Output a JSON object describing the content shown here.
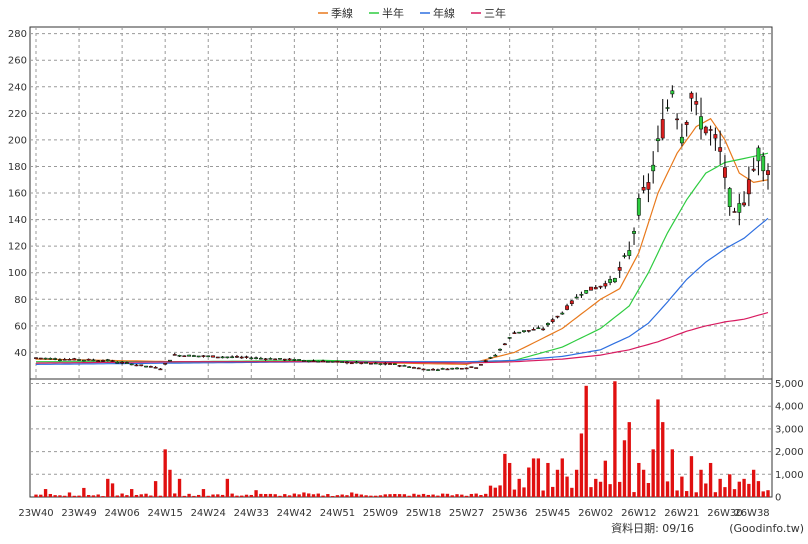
{
  "chart_data": {
    "type": "candlestick",
    "title": "",
    "legend": {
      "placement": "top-center",
      "items": [
        {
          "label": "季線",
          "color": "#e8791c"
        },
        {
          "label": "半年",
          "color": "#2ecc40"
        },
        {
          "label": "年線",
          "color": "#2e6fe0"
        },
        {
          "label": "三年",
          "color": "#d81b60"
        }
      ]
    },
    "price_axis": {
      "ylim": [
        20,
        285
      ],
      "ticks": [
        40,
        60,
        80,
        100,
        120,
        140,
        160,
        180,
        200,
        220,
        240,
        260,
        280
      ],
      "side": "left",
      "grid": true
    },
    "volume_axis": {
      "ylim": [
        0,
        5200
      ],
      "ticks": [
        "0",
        "1,000",
        "2,000",
        "3,000",
        "4,000",
        "5,000"
      ],
      "tick_values": [
        0,
        1000,
        2000,
        3000,
        4000,
        5000
      ],
      "side": "right"
    },
    "x_tick_labels": [
      "23W40",
      "23W49",
      "24W06",
      "24W15",
      "24W24",
      "24W33",
      "24W42",
      "24W51",
      "25W09",
      "25W18",
      "25W27",
      "25W36",
      "25W45",
      "26W02",
      "26W12",
      "26W21",
      "26W30",
      "26W38"
    ],
    "x_tick_index": [
      0,
      9,
      18,
      27,
      36,
      45,
      54,
      63,
      72,
      81,
      90,
      99,
      108,
      117,
      126,
      135,
      144,
      152
    ],
    "candle_anchors": [
      [
        0,
        36
      ],
      [
        5,
        35
      ],
      [
        15,
        34
      ],
      [
        26,
        28
      ],
      [
        29,
        38
      ],
      [
        45,
        36
      ],
      [
        62,
        33
      ],
      [
        75,
        31
      ],
      [
        82,
        27
      ],
      [
        92,
        29
      ],
      [
        96,
        38
      ],
      [
        100,
        55
      ],
      [
        106,
        58
      ],
      [
        110,
        70
      ],
      [
        114,
        85
      ],
      [
        118,
        90
      ],
      [
        121,
        95
      ],
      [
        124,
        115
      ],
      [
        126,
        150
      ],
      [
        128,
        165
      ],
      [
        131,
        210
      ],
      [
        133,
        240
      ],
      [
        135,
        205
      ],
      [
        137,
        235
      ],
      [
        138,
        220
      ],
      [
        141,
        205
      ],
      [
        143,
        190
      ],
      [
        146,
        140
      ],
      [
        149,
        165
      ],
      [
        151,
        190
      ],
      [
        153,
        180
      ]
    ],
    "ma_series": [
      {
        "name": "季線",
        "points": [
          [
            0,
            35
          ],
          [
            30,
            33
          ],
          [
            60,
            33
          ],
          [
            90,
            31
          ],
          [
            100,
            40
          ],
          [
            110,
            58
          ],
          [
            118,
            80
          ],
          [
            122,
            88
          ],
          [
            126,
            115
          ],
          [
            130,
            160
          ],
          [
            134,
            190
          ],
          [
            138,
            210
          ],
          [
            141,
            216
          ],
          [
            144,
            200
          ],
          [
            147,
            175
          ],
          [
            150,
            168
          ],
          [
            153,
            170
          ]
        ]
      },
      {
        "name": "半年",
        "points": [
          [
            0,
            33
          ],
          [
            30,
            33
          ],
          [
            60,
            34
          ],
          [
            90,
            32
          ],
          [
            100,
            34
          ],
          [
            110,
            44
          ],
          [
            118,
            58
          ],
          [
            124,
            75
          ],
          [
            128,
            100
          ],
          [
            132,
            130
          ],
          [
            136,
            155
          ],
          [
            140,
            175
          ],
          [
            144,
            183
          ],
          [
            148,
            186
          ],
          [
            153,
            190
          ]
        ]
      },
      {
        "name": "年線",
        "points": [
          [
            0,
            31
          ],
          [
            30,
            32
          ],
          [
            60,
            33
          ],
          [
            90,
            33
          ],
          [
            100,
            34
          ],
          [
            110,
            37
          ],
          [
            118,
            42
          ],
          [
            124,
            52
          ],
          [
            128,
            62
          ],
          [
            132,
            78
          ],
          [
            136,
            95
          ],
          [
            140,
            108
          ],
          [
            144,
            118
          ],
          [
            148,
            126
          ],
          [
            153,
            141
          ]
        ]
      },
      {
        "name": "三年",
        "points": [
          [
            0,
            32
          ],
          [
            30,
            33
          ],
          [
            60,
            33
          ],
          [
            90,
            32
          ],
          [
            100,
            33
          ],
          [
            110,
            35
          ],
          [
            118,
            38
          ],
          [
            124,
            42
          ],
          [
            130,
            48
          ],
          [
            136,
            56
          ],
          [
            140,
            60
          ],
          [
            144,
            63
          ],
          [
            148,
            65
          ],
          [
            153,
            70
          ]
        ]
      }
    ],
    "volume_spikes": [
      [
        2,
        350
      ],
      [
        7,
        200
      ],
      [
        10,
        400
      ],
      [
        15,
        800
      ],
      [
        16,
        600
      ],
      [
        20,
        350
      ],
      [
        25,
        700
      ],
      [
        27,
        2100
      ],
      [
        28,
        1200
      ],
      [
        30,
        800
      ],
      [
        35,
        350
      ],
      [
        40,
        800
      ],
      [
        46,
        300
      ],
      [
        56,
        200
      ],
      [
        66,
        200
      ],
      [
        85,
        150
      ],
      [
        95,
        500
      ],
      [
        98,
        1900
      ],
      [
        99,
        1500
      ],
      [
        101,
        800
      ],
      [
        103,
        1300
      ],
      [
        104,
        1700
      ],
      [
        105,
        1700
      ],
      [
        107,
        1500
      ],
      [
        109,
        1200
      ],
      [
        110,
        1700
      ],
      [
        111,
        900
      ],
      [
        113,
        1200
      ],
      [
        114,
        2800
      ],
      [
        115,
        4900
      ],
      [
        117,
        800
      ],
      [
        119,
        1600
      ],
      [
        121,
        5100
      ],
      [
        123,
        2500
      ],
      [
        124,
        3300
      ],
      [
        126,
        1500
      ],
      [
        127,
        1200
      ],
      [
        129,
        2100
      ],
      [
        130,
        4300
      ],
      [
        131,
        3300
      ],
      [
        133,
        2100
      ],
      [
        135,
        900
      ],
      [
        137,
        1800
      ],
      [
        139,
        1200
      ],
      [
        141,
        1500
      ],
      [
        143,
        800
      ],
      [
        145,
        1000
      ],
      [
        148,
        800
      ],
      [
        150,
        1200
      ],
      [
        151,
        700
      ],
      [
        153,
        300
      ]
    ]
  },
  "footer": {
    "date_label": "資料日期: 09/16",
    "source": "(Goodinfo.tw)"
  },
  "colors": {
    "up": "#d81e1e",
    "down": "#2ecc40",
    "wick": "#000000",
    "volume": "#e01010",
    "grid": "#9a9a9a",
    "axis": "#333333"
  }
}
